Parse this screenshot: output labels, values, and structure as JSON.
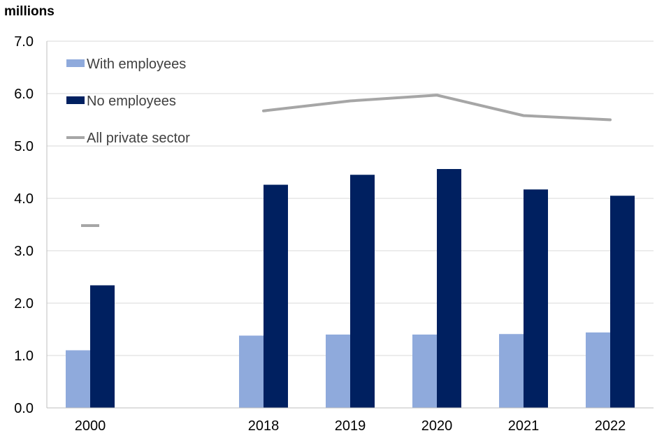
{
  "chart_data": {
    "type": "bar",
    "title": "",
    "xlabel": "",
    "ylabel": "millions",
    "ylim": [
      0,
      7
    ],
    "yticks": [
      0,
      1,
      2,
      3,
      4,
      5,
      6,
      7
    ],
    "ytick_labels": [
      "0.0",
      "1.0",
      "2.0",
      "3.0",
      "4.0",
      "5.0",
      "6.0",
      "7.0"
    ],
    "grid": true,
    "legend_position": "top-left",
    "categories": [
      "2000",
      "",
      "2018",
      "2019",
      "2020",
      "2021",
      "2022"
    ],
    "series": [
      {
        "name": "With employees",
        "type": "bar",
        "color": "#8faadc",
        "values": [
          1.1,
          null,
          1.38,
          1.4,
          1.4,
          1.41,
          1.44
        ]
      },
      {
        "name": "No employees",
        "type": "bar",
        "color": "#002060",
        "values": [
          2.34,
          null,
          4.26,
          4.45,
          4.56,
          4.17,
          4.05
        ]
      },
      {
        "name": "All private sector",
        "type": "line",
        "color": "#a6a6a6",
        "values": [
          3.48,
          null,
          5.67,
          5.86,
          5.97,
          5.58,
          5.5
        ]
      }
    ]
  }
}
